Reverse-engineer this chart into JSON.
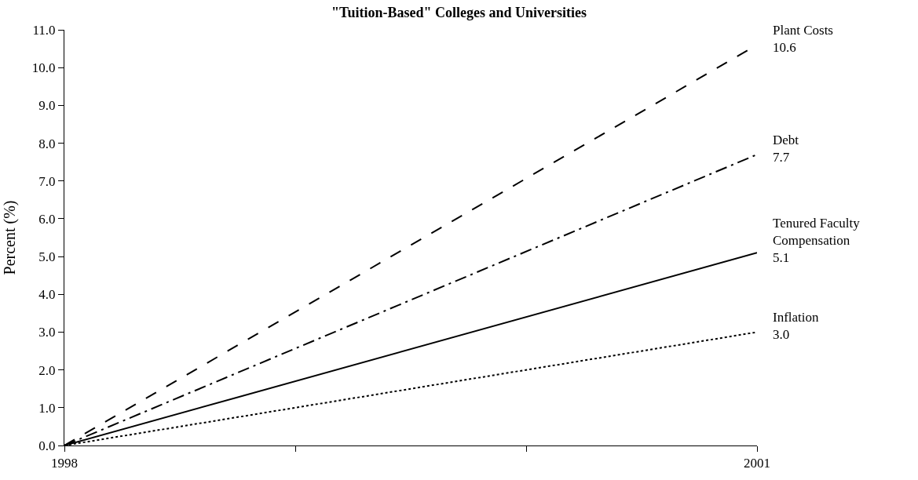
{
  "chart_data": {
    "type": "line",
    "title": "\"Tuition-Based\" Colleges and Universities",
    "ylabel": "Percent (%)",
    "x": [
      1998,
      2001
    ],
    "series": [
      {
        "name": "Plant Costs",
        "color": "#000000",
        "line_style": "dashed",
        "values": [
          0,
          10.6
        ],
        "value_labels": [
          null,
          "10.6"
        ]
      },
      {
        "name": "Debt",
        "color": "#000000",
        "line_style": "dashdot",
        "values": [
          0,
          7.7
        ],
        "value_labels": [
          null,
          "7.7"
        ]
      },
      {
        "name": "Tenured Faculty Compensation",
        "color": "#000000",
        "line_style": "solid",
        "values": [
          0,
          5.1
        ],
        "value_labels": [
          null,
          "5.1"
        ]
      },
      {
        "name": "Inflation",
        "color": "#000000",
        "line_style": "dotted",
        "values": [
          0,
          3.0
        ],
        "value_labels": [
          null,
          "3.0"
        ]
      }
    ],
    "xlim": [
      1998,
      2001
    ],
    "xticks": [
      1998,
      {
        "value": 1999,
        "label": null
      },
      {
        "value": 2000,
        "label": null
      },
      2001
    ],
    "ylim": [
      0,
      11
    ],
    "yticks": [
      {
        "value": 0,
        "label": "0.0"
      },
      {
        "value": 1,
        "label": "1.0"
      },
      {
        "value": 2,
        "label": "2.0"
      },
      {
        "value": 3,
        "label": "3.0"
      },
      {
        "value": 4,
        "label": "4.0"
      },
      {
        "value": 5,
        "label": "5.0"
      },
      {
        "value": 6,
        "label": "6.0"
      },
      {
        "value": 7,
        "label": "7.0"
      },
      {
        "value": 8,
        "label": "8.0"
      },
      {
        "value": 9,
        "label": "9.0"
      },
      {
        "value": 10,
        "label": "10.0"
      },
      {
        "value": 11,
        "label": "11.0"
      }
    ],
    "legend": false,
    "marker": "none"
  }
}
